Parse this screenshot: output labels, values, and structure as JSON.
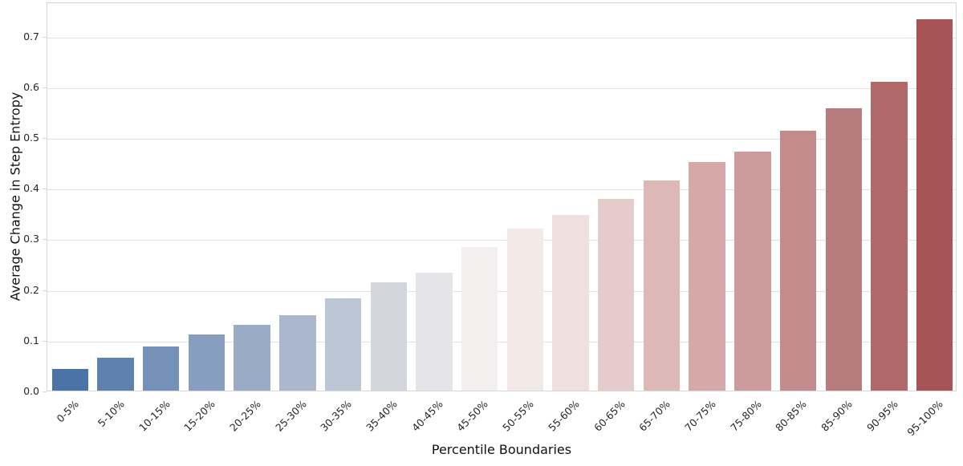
{
  "chart_data": {
    "type": "bar",
    "title": "",
    "xlabel": "Percentile Boundaries",
    "ylabel": "Average Change in Step Entropy",
    "categories": [
      "0-5%",
      "5-10%",
      "10-15%",
      "15-20%",
      "20-25%",
      "25-30%",
      "30-35%",
      "35-40%",
      "40-45%",
      "45-50%",
      "50-55%",
      "55-60%",
      "60-65%",
      "65-70%",
      "70-75%",
      "75-80%",
      "80-85%",
      "85-90%",
      "90-95%",
      "95-100%"
    ],
    "values": [
      0.043,
      0.065,
      0.087,
      0.111,
      0.129,
      0.148,
      0.182,
      0.213,
      0.232,
      0.284,
      0.319,
      0.347,
      0.379,
      0.414,
      0.451,
      0.471,
      0.512,
      0.557,
      0.61,
      0.732
    ],
    "bar_colors": [
      "#4a74a8",
      "#5e81b0",
      "#7591ba",
      "#889ec0",
      "#9aabc5",
      "#aab7cc",
      "#bcc6d5",
      "#d3d6dd",
      "#e5e4e8",
      "#f2efee",
      "#f3e9e7",
      "#efdfdf",
      "#e5cccb",
      "#dcb9b7",
      "#d5a9a8",
      "#cd9b9b",
      "#c38c8c",
      "#b97c7d",
      "#b06869",
      "#a65455"
    ],
    "yticks": [
      0.0,
      0.1,
      0.2,
      0.3,
      0.4,
      0.5,
      0.6,
      0.7
    ],
    "ytick_labels": [
      "0.0",
      "0.1",
      "0.2",
      "0.3",
      "0.4",
      "0.5",
      "0.6",
      "0.7"
    ],
    "ylim": [
      0,
      0.7675
    ],
    "xtick_rotation_deg": 45,
    "grid": "horizontal",
    "legend": "none",
    "colors": {
      "background": "#ffffff",
      "grid": "#e2e2e2",
      "spine": "#d7d7d7",
      "tick_label": "#262626",
      "axis_label": "#111111"
    }
  }
}
